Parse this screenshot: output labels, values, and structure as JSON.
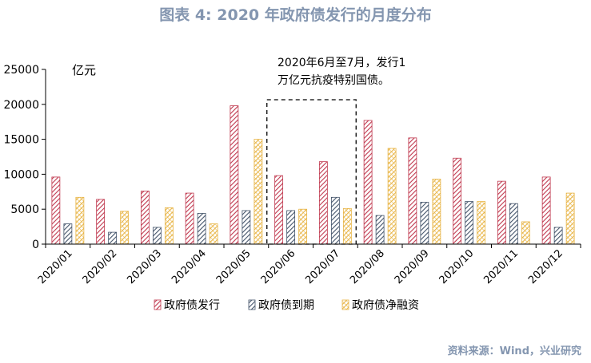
{
  "title": "图表 4:   2020 年政府债发行的月度分布",
  "source": "资料来源：Wind，兴业研究",
  "colors": {
    "issuance": "#C0394F",
    "maturity": "#44546A",
    "net_financing": "#E8B547",
    "title": "#8496B0",
    "axis": "#000000"
  },
  "chart_data": {
    "type": "bar",
    "unit_label": "亿元",
    "annotation": {
      "lines": [
        "2020年6月至7月，发行1",
        "万亿元抗疫特别国债。"
      ],
      "highlight_categories": [
        "2020/06",
        "2020/07"
      ]
    },
    "categories": [
      "2020/01",
      "2020/02",
      "2020/03",
      "2020/04",
      "2020/05",
      "2020/06",
      "2020/07",
      "2020/08",
      "2020/09",
      "2020/10",
      "2020/11",
      "2020/12"
    ],
    "series": [
      {
        "name": "政府债发行",
        "color_key": "issuance",
        "pattern": "diagonal",
        "values": [
          9600,
          6400,
          7600,
          7300,
          19800,
          9800,
          11800,
          17700,
          15200,
          12300,
          9000,
          9600
        ]
      },
      {
        "name": "政府债到期",
        "color_key": "maturity",
        "pattern": "diagonal",
        "values": [
          2900,
          1700,
          2400,
          4400,
          4800,
          4800,
          6700,
          4100,
          6000,
          6100,
          5800,
          2400
        ]
      },
      {
        "name": "政府债净融资",
        "color_key": "net_financing",
        "pattern": "crosshatch",
        "values": [
          6700,
          4700,
          5200,
          2900,
          15000,
          5000,
          5100,
          13700,
          9300,
          6100,
          3200,
          7300
        ]
      }
    ],
    "ylim": [
      0,
      25000
    ],
    "yticks": [
      0,
      5000,
      10000,
      15000,
      20000,
      25000
    ],
    "legend_position": "bottom"
  }
}
